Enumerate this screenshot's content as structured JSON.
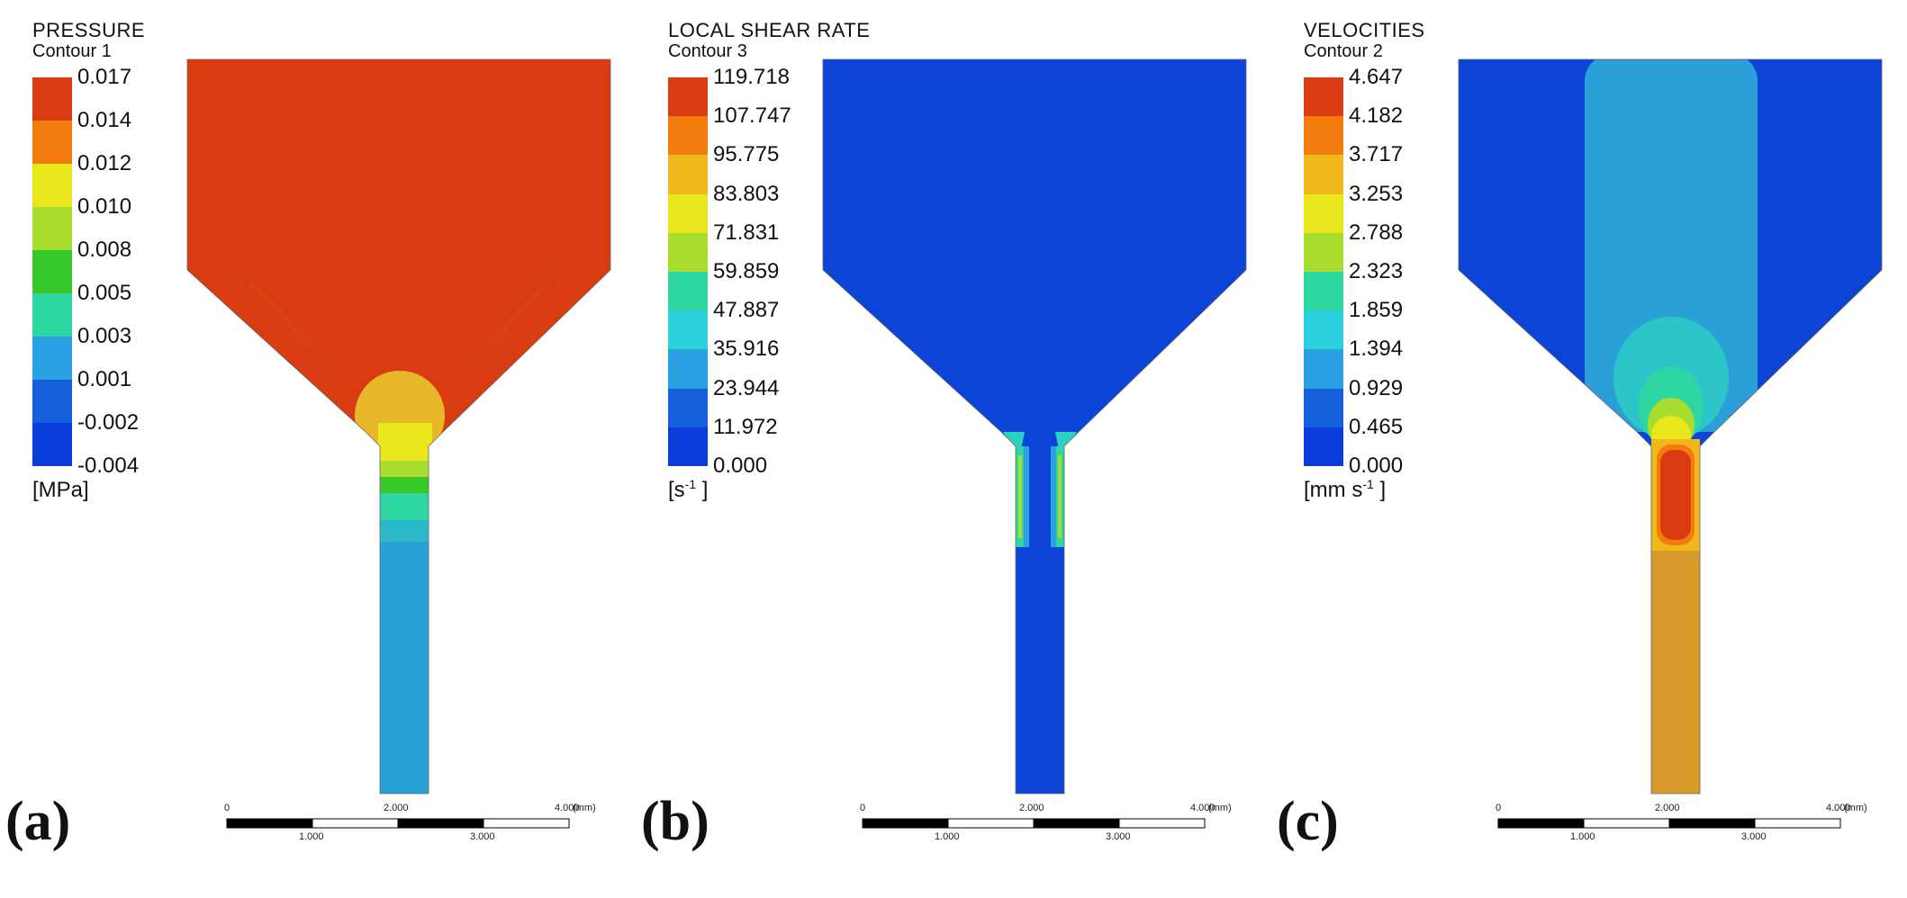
{
  "panels": [
    {
      "label": "(a)",
      "title": "PRESSURE",
      "contour": "Contour 1",
      "ticks": [
        "0.017",
        "0.014",
        "0.012",
        "0.010",
        "0.008",
        "0.005",
        "0.003",
        "0.001",
        "-0.002",
        "-0.004"
      ],
      "unit_main": "[MPa]",
      "unit_sup": "",
      "unit_tail": ""
    },
    {
      "label": "(b)",
      "title": "LOCAL SHEAR RATE",
      "contour": "Contour 3",
      "ticks": [
        "119.718",
        "107.747",
        "95.775",
        "83.803",
        "71.831",
        "59.859",
        "47.887",
        "35.916",
        "23.944",
        "11.972",
        "0.000"
      ],
      "unit_main": "[s",
      "unit_sup": "-1",
      "unit_tail": " ]"
    },
    {
      "label": "(c)",
      "title": "VELOCITIES",
      "contour": "Contour 2",
      "ticks": [
        "4.647",
        "4.182",
        "3.717",
        "3.253",
        "2.788",
        "2.323",
        "1.859",
        "1.394",
        "0.929",
        "0.465",
        "0.000"
      ],
      "unit_main": "[mm s",
      "unit_sup": "-1",
      "unit_tail": " ]"
    }
  ],
  "scale_bar": {
    "top_labels": [
      "0",
      "2.000",
      "4.000"
    ],
    "unit": "(mm)",
    "bottom_labels": [
      "1.000",
      "3.000"
    ]
  },
  "colormap": [
    "#d83c10",
    "#f27d0e",
    "#f0b81c",
    "#eae61c",
    "#a8dd30",
    "#37c82a",
    "#2ed7a2",
    "#2cd0dc",
    "#2aa1e2",
    "#1560db",
    "#0b3ddb"
  ],
  "colors": {
    "background": "#ffffff",
    "domain_outline": "#666666"
  }
}
